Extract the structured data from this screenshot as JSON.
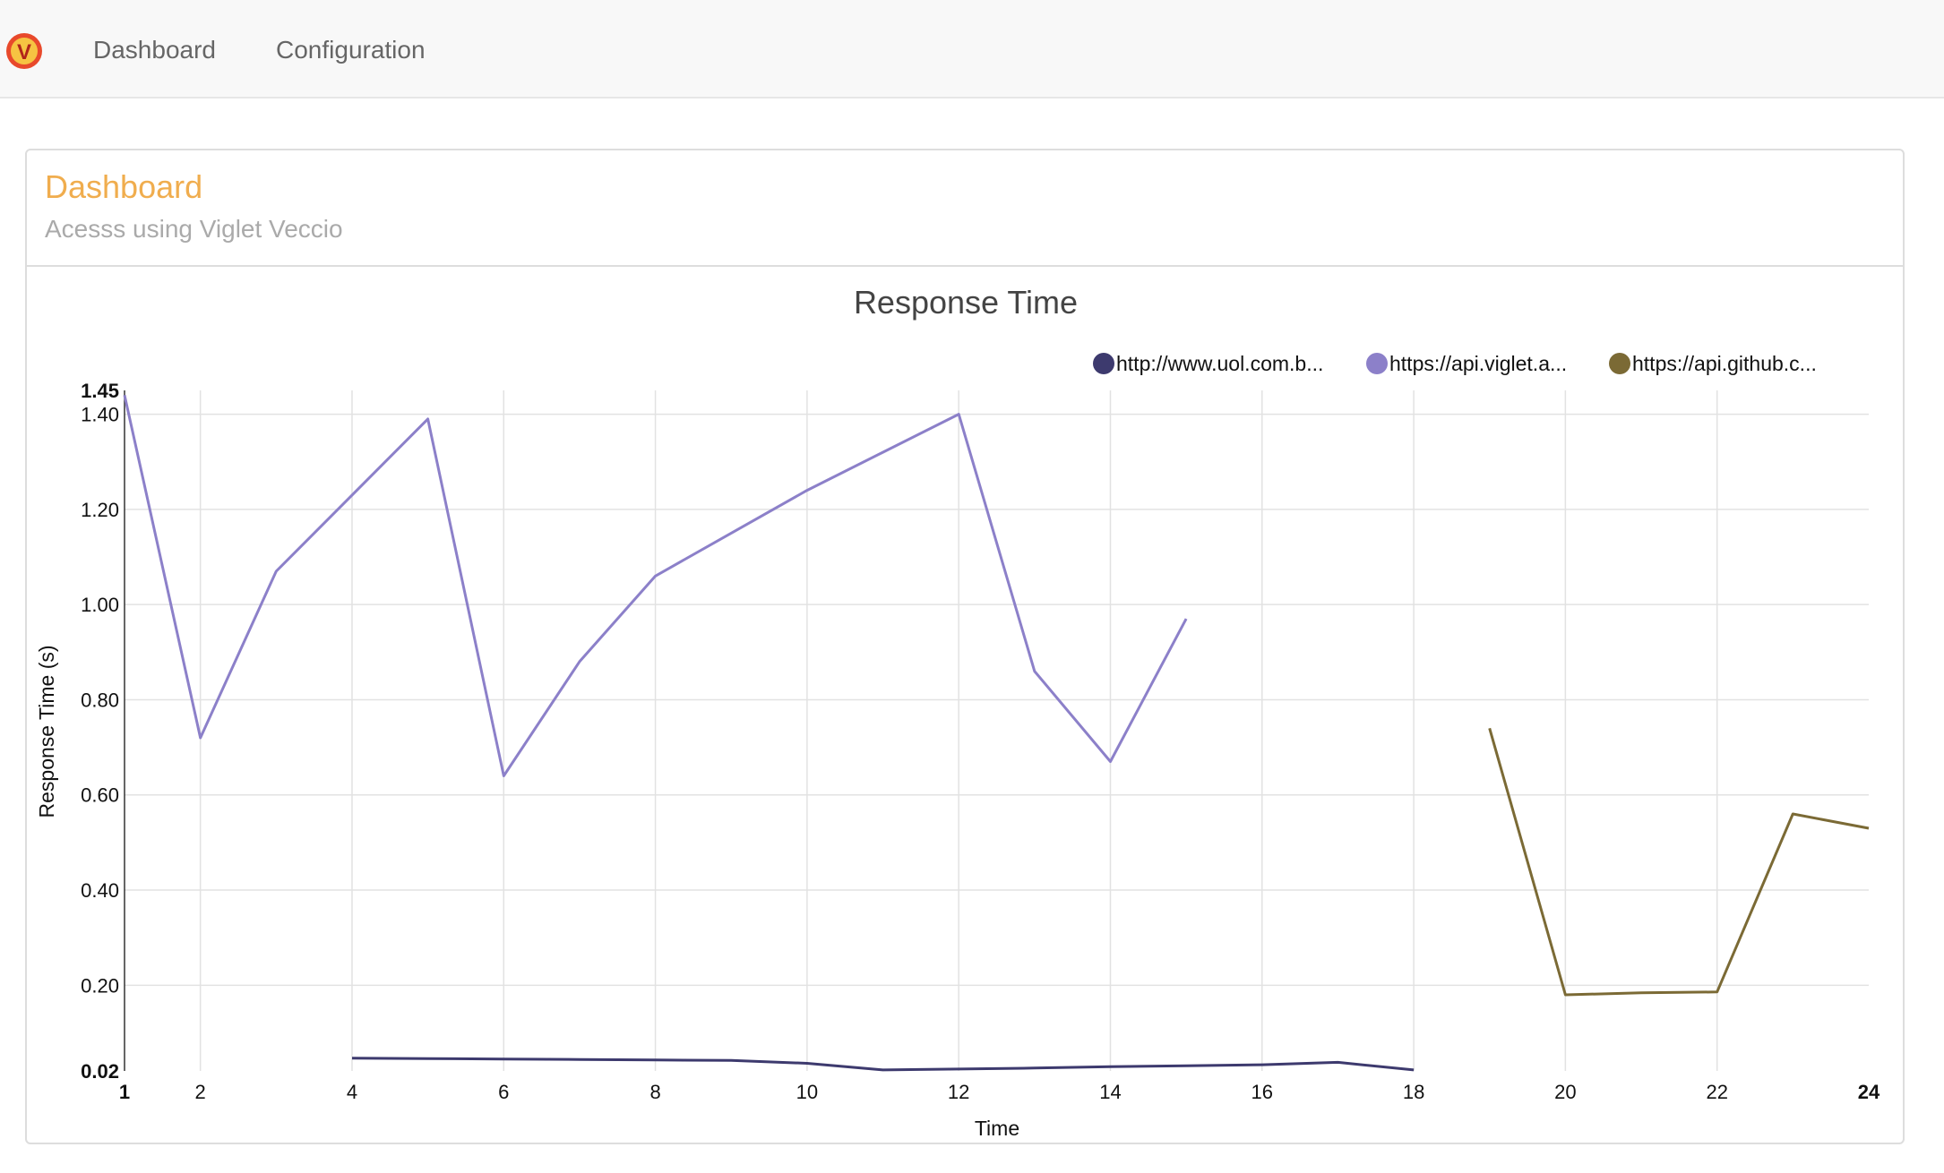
{
  "navbar": {
    "logo_letter": "V",
    "links": [
      "Dashboard",
      "Configuration"
    ]
  },
  "panel": {
    "title": "Dashboard",
    "subtitle": "Acesss using Viglet Veccio"
  },
  "colors": {
    "accent": "#f0ad4e",
    "series_uol": "#3d3a6e",
    "series_viglet": "#8c80c9",
    "series_github": "#7b6a35",
    "grid": "#e2e2e2"
  },
  "chart_data": {
    "type": "line",
    "title": "Response Time",
    "xlabel": "Time",
    "ylabel": "Response Time (s)",
    "xlim": [
      1,
      24
    ],
    "ylim": [
      0.02,
      1.45
    ],
    "x_ticks": [
      1,
      2,
      4,
      6,
      8,
      10,
      12,
      14,
      16,
      18,
      20,
      22,
      24
    ],
    "x_tick_labels": [
      "1",
      "2",
      "4",
      "6",
      "8",
      "10",
      "12",
      "14",
      "16",
      "18",
      "20",
      "22",
      "24"
    ],
    "x_grid": [
      2,
      4,
      6,
      8,
      10,
      12,
      14,
      16,
      18,
      20,
      22
    ],
    "y_ticks": [
      0.02,
      0.2,
      0.4,
      0.6,
      0.8,
      1.0,
      1.2,
      1.4,
      1.45
    ],
    "y_tick_labels": [
      "0.02",
      "0.20",
      "0.40",
      "0.60",
      "0.80",
      "1.00",
      "1.20",
      "1.40",
      "1.45"
    ],
    "y_grid": [
      0.2,
      0.4,
      0.6,
      0.8,
      1.0,
      1.2,
      1.4
    ],
    "legend": [
      "http://www.uol.com.b...",
      "https://api.viglet.a...",
      "https://api.github.c..."
    ],
    "series": [
      {
        "name": "http://www.uol.com.b...",
        "x": [
          4,
          5,
          6,
          7,
          8,
          9,
          10,
          11,
          12,
          13,
          14,
          15,
          16,
          17,
          18
        ],
        "values": [
          0.047,
          0.046,
          0.045,
          0.044,
          0.043,
          0.042,
          0.036,
          0.022,
          0.024,
          0.026,
          0.029,
          0.031,
          0.033,
          0.038,
          0.022
        ]
      },
      {
        "name": "https://api.viglet.a...",
        "x": [
          1,
          2,
          3,
          4,
          5,
          6,
          7,
          8,
          9,
          10,
          11,
          12,
          13,
          14,
          15
        ],
        "values": [
          1.44,
          0.72,
          1.07,
          1.23,
          1.39,
          0.64,
          0.88,
          1.06,
          1.15,
          1.24,
          1.32,
          1.4,
          0.86,
          0.67,
          0.97
        ]
      },
      {
        "name": "https://api.github.c...",
        "x": [
          19,
          20,
          21,
          22,
          23,
          24
        ],
        "values": [
          0.74,
          0.18,
          0.184,
          0.186,
          0.56,
          0.53
        ]
      }
    ]
  }
}
